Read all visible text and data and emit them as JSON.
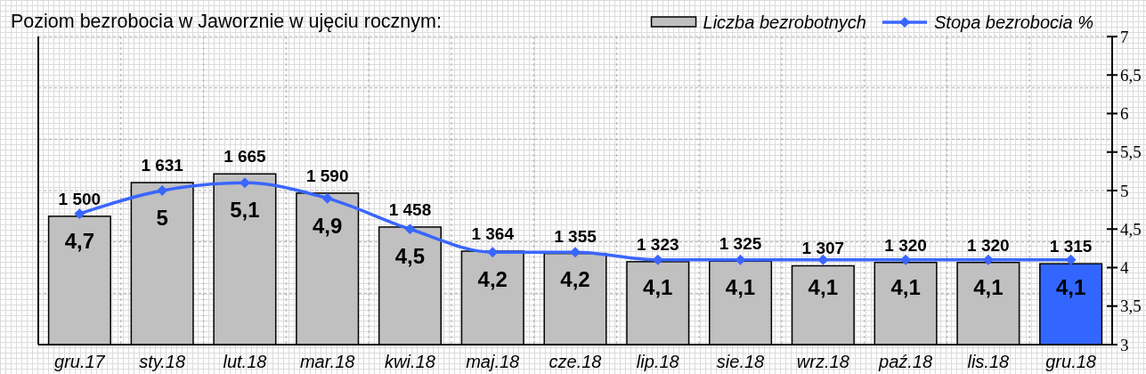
{
  "chart_data": {
    "type": "bar",
    "title": "Poziom bezrobocia w Jaworznie w ujęciu rocznym:",
    "categories": [
      "gru.17",
      "sty.18",
      "lut.18",
      "mar.18",
      "kwi.18",
      "maj.18",
      "cze.18",
      "lip.18",
      "sie.18",
      "wrz.18",
      "paź.18",
      "lis.18",
      "gru.18"
    ],
    "series": [
      {
        "name": "Liczba bezrobotnych",
        "color": "#c0c0c0",
        "colors": [
          "#c0c0c0",
          "#c0c0c0",
          "#c0c0c0",
          "#c0c0c0",
          "#c0c0c0",
          "#c0c0c0",
          "#c0c0c0",
          "#c0c0c0",
          "#c0c0c0",
          "#c0c0c0",
          "#c0c0c0",
          "#c0c0c0",
          "#3366ff"
        ],
        "values": [
          1500,
          1631,
          1665,
          1590,
          1458,
          1364,
          1355,
          1323,
          1325,
          1307,
          1320,
          1320,
          1315
        ],
        "value_labels": [
          "1 500",
          "1 631",
          "1 665",
          "1 590",
          "1 458",
          "1 364",
          "1 355",
          "1 323",
          "1 325",
          "1 307",
          "1 320",
          "1 320",
          "1 315"
        ]
      },
      {
        "name": "Stopa bezrobocia %",
        "type": "line",
        "axis": "y2",
        "color": "#3a66ff",
        "marker": "diamond",
        "values": [
          4.7,
          5,
          5.1,
          4.9,
          4.5,
          4.2,
          4.2,
          4.1,
          4.1,
          4.1,
          4.1,
          4.1,
          4.1
        ],
        "value_labels": [
          "4,7",
          "5",
          "5,1",
          "4,9",
          "4,5",
          "4,2",
          "4,2",
          "4,1",
          "4,1",
          "4,1",
          "4,1",
          "4,1",
          "4,1"
        ]
      }
    ],
    "ylim": [
      1000,
      2200
    ],
    "yticks": [
      {
        "value": 1000,
        "label": null
      },
      {
        "value": 1200,
        "label": null
      },
      {
        "value": 1400,
        "label": null
      },
      {
        "value": 1600,
        "label": null
      },
      {
        "value": 1800,
        "label": null
      },
      {
        "value": 2000,
        "label": null
      },
      {
        "value": 2200,
        "label": null
      }
    ],
    "y2lim": [
      3,
      7
    ],
    "y2ticks": [
      3,
      {
        "value": 3.5,
        "label": "3,5"
      },
      4,
      {
        "value": 4.5,
        "label": "4,5"
      },
      5,
      {
        "value": 5.5,
        "label": "5,5"
      },
      6,
      {
        "value": 6.5,
        "label": "6,5"
      },
      7
    ],
    "grid": true,
    "legend": "top right"
  }
}
